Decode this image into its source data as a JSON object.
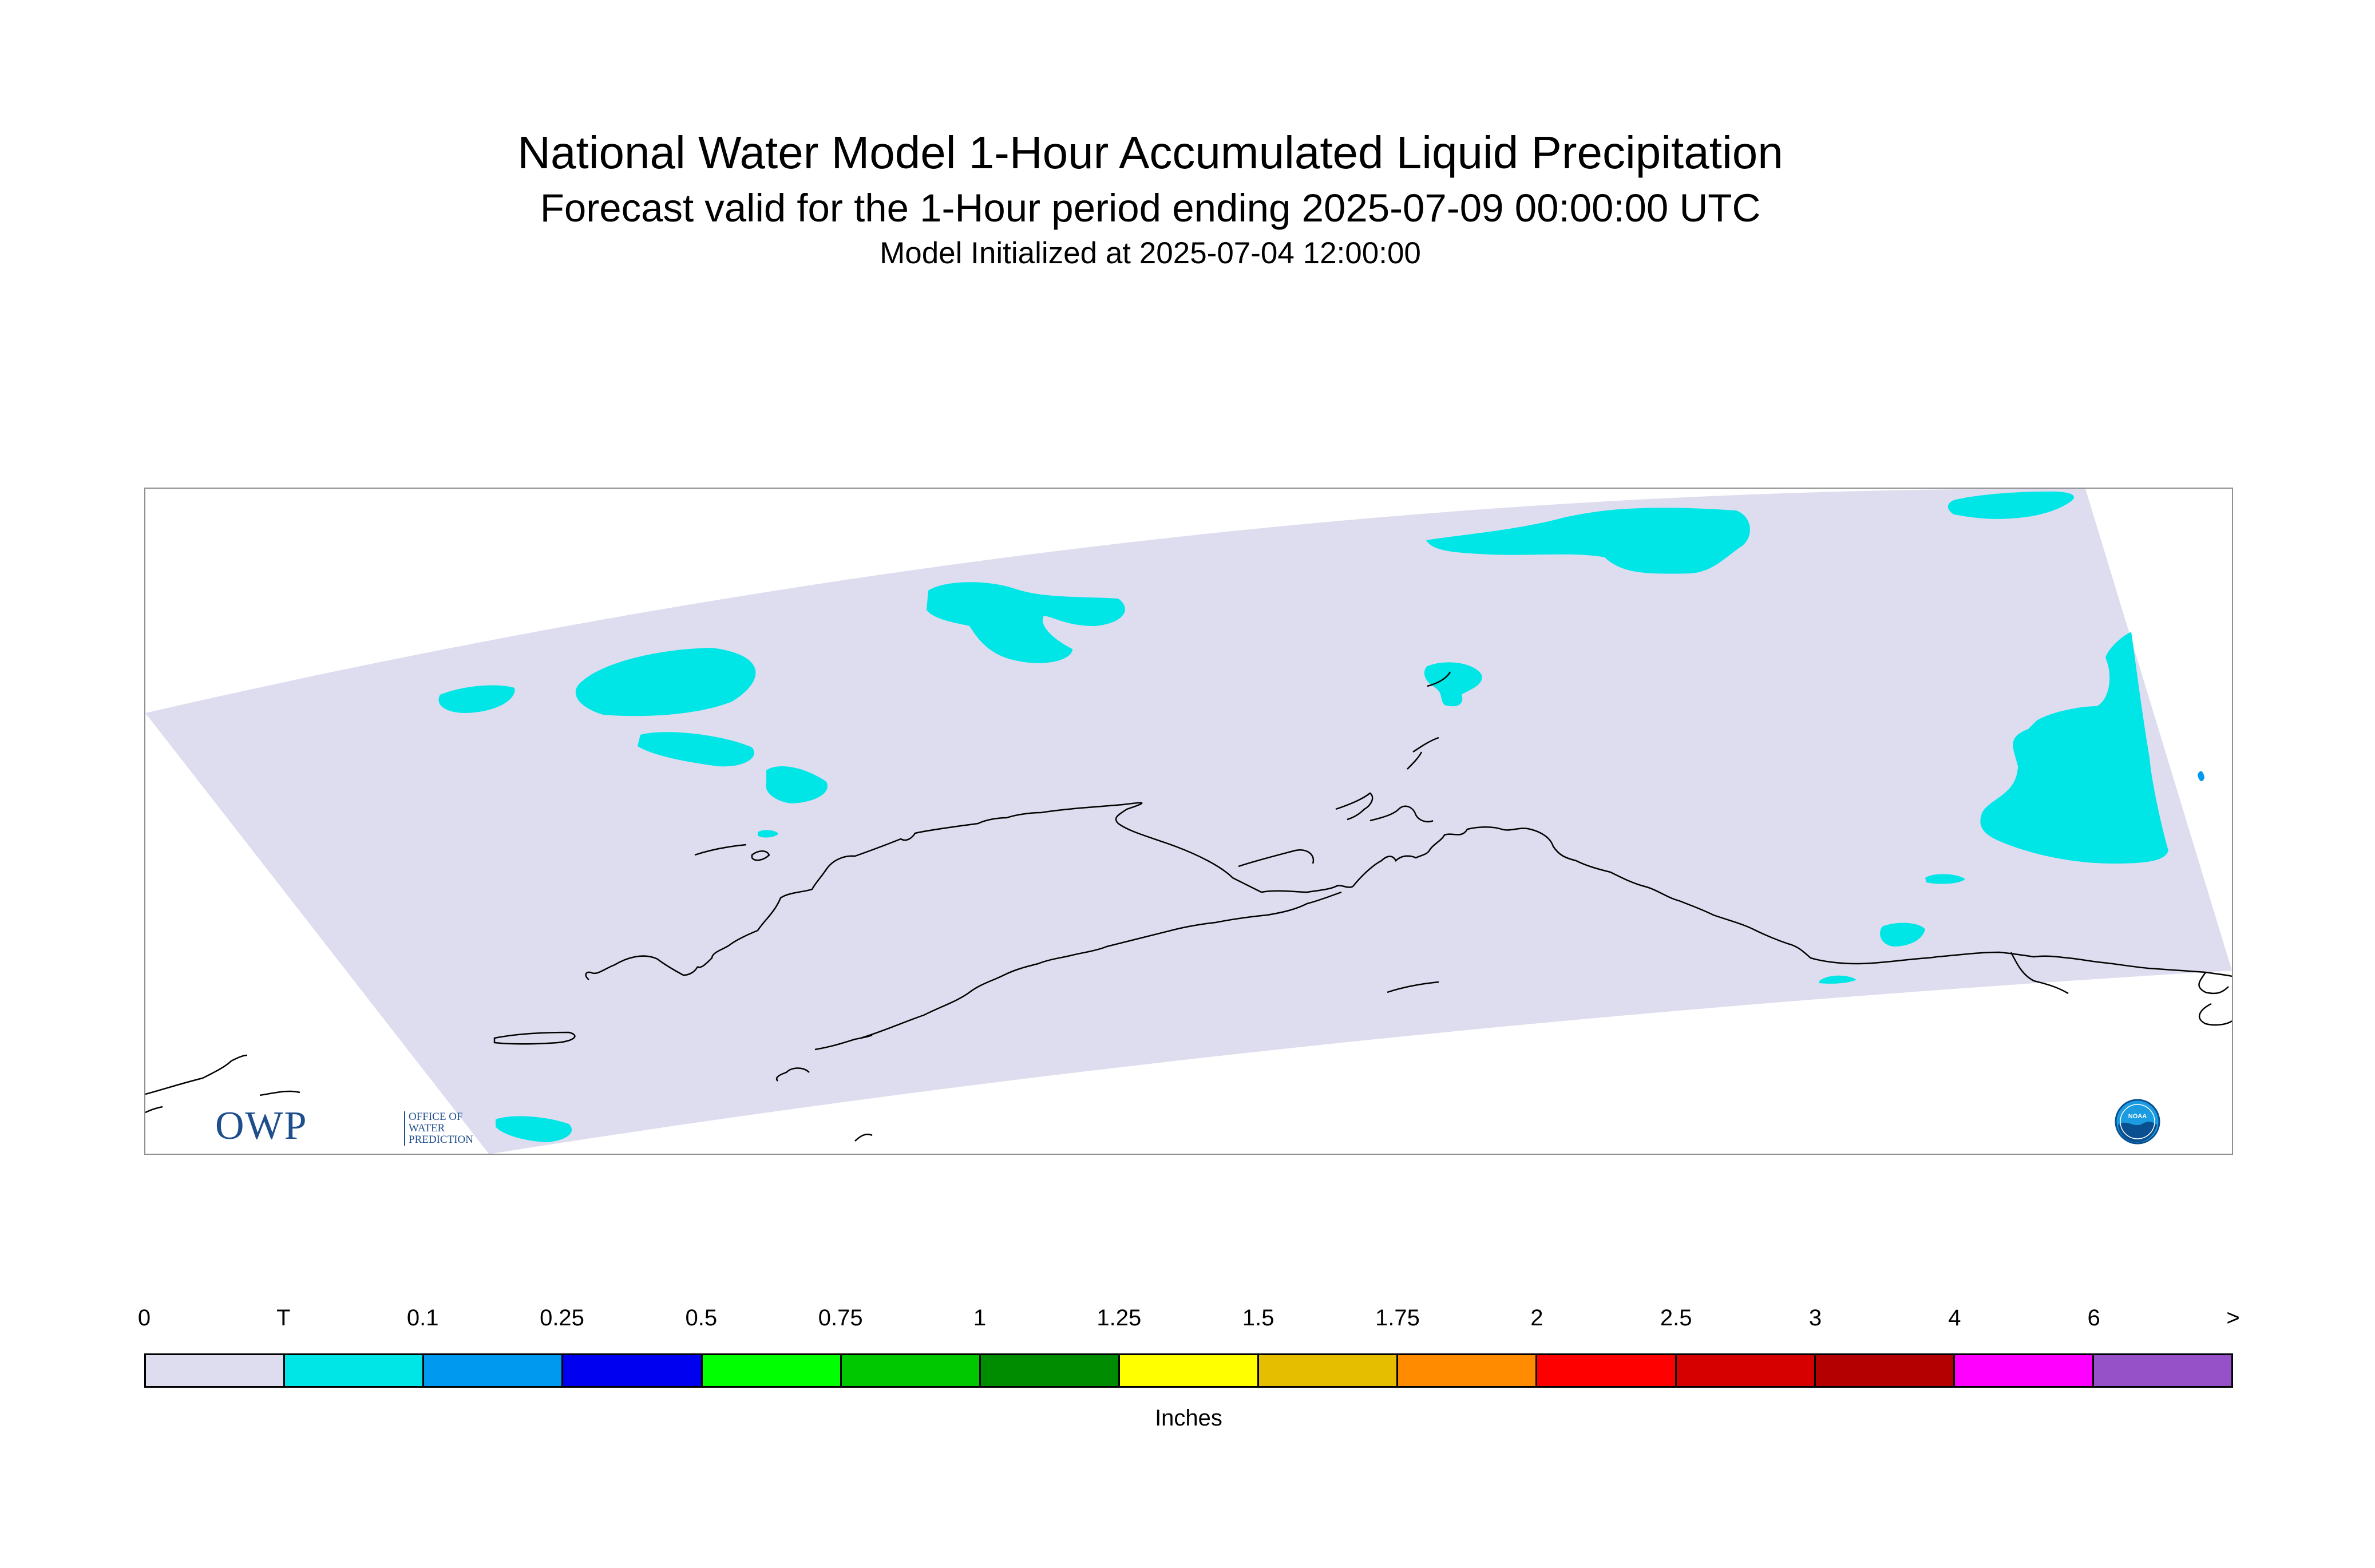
{
  "header": {
    "title": "National Water Model 1-Hour Accumulated Liquid Precipitation",
    "subtitle": "Forecast valid for the 1-Hour period ending 2025-07-09 00:00:00 UTC",
    "initialized": "Model Initialized at 2025-07-04 12:00:00"
  },
  "logos": {
    "owp_letters": "OWP",
    "owp_text": "OFFICE OF WATER PREDICTION",
    "noaa_text": "NOAA"
  },
  "colors": {
    "trace": "#ddddef",
    "light_precip": "#00e6e6",
    "coastline": "#000000",
    "frame": "#8f8f8f"
  },
  "legend": {
    "units": "Inches",
    "ticks": [
      "0",
      "T",
      "0.1",
      "0.25",
      "0.5",
      "0.75",
      "1",
      "1.25",
      "1.5",
      "1.75",
      "2",
      "2.5",
      "3",
      "4",
      "6",
      ">"
    ],
    "colors": [
      "#ddddef",
      "#00e6e6",
      "#0099f0",
      "#0000f0",
      "#00ff00",
      "#00c800",
      "#008c00",
      "#ffff00",
      "#e6be00",
      "#ff8c00",
      "#ff0000",
      "#d70000",
      "#b40000",
      "#ff00ff",
      "#9650c8"
    ]
  }
}
